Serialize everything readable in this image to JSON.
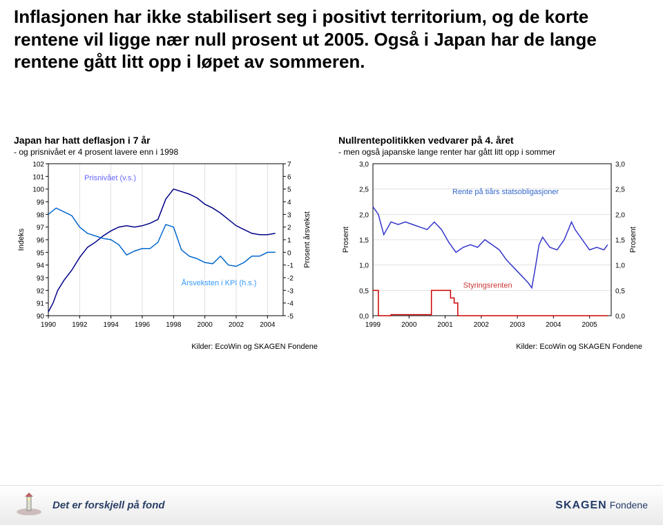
{
  "title": "Inflasjonen har ikke stabilisert seg i positivt territorium, og de korte rentene vil ligge nær null prosent ut 2005. Også i Japan har de lange rentene gått litt opp i løpet av sommeren.",
  "footer": {
    "tagline": "Det er forskjell på fond",
    "logo_main": "SKAGEN",
    "logo_sub": "Fondene"
  },
  "left_chart": {
    "title": "Japan har hatt deflasjon i 7 år",
    "subtitle": "- og prisnivået er 4 prosent lavere enn i 1998",
    "y1_label": "Indeks",
    "y2_label": "Prosent årsvekst",
    "series1_label": "Prisnivået (v.s.)",
    "series2_label": "Årsveksten i KPI (h.s.)",
    "source": "Kilder: EcoWin og SKAGEN Fondene",
    "x_ticks": [
      1990,
      1992,
      1994,
      1996,
      1998,
      2000,
      2002,
      2004
    ],
    "y1_min": 90,
    "y1_max": 102,
    "y1_step": 1,
    "y2_min": -5,
    "y2_max": 7,
    "y2_step": 1,
    "colors": {
      "series1": "#000088",
      "series2": "#0066cc",
      "grid": "#c0c0c0",
      "axis": "#000000",
      "label_series1": "#6666ff",
      "label_series2": "#3399ff"
    },
    "series1_data": [
      [
        1990,
        90.3
      ],
      [
        1990.3,
        91.0
      ],
      [
        1990.6,
        92.0
      ],
      [
        1991,
        92.8
      ],
      [
        1991.5,
        93.6
      ],
      [
        1992,
        94.6
      ],
      [
        1992.5,
        95.4
      ],
      [
        1993,
        95.8
      ],
      [
        1993.5,
        96.3
      ],
      [
        1994,
        96.7
      ],
      [
        1994.5,
        97.0
      ],
      [
        1995,
        97.1
      ],
      [
        1995.5,
        97.0
      ],
      [
        1996,
        97.1
      ],
      [
        1996.5,
        97.3
      ],
      [
        1997,
        97.6
      ],
      [
        1997.5,
        99.2
      ],
      [
        1998,
        100.0
      ],
      [
        1998.5,
        99.8
      ],
      [
        1999,
        99.6
      ],
      [
        1999.5,
        99.3
      ],
      [
        2000,
        98.8
      ],
      [
        2000.5,
        98.5
      ],
      [
        2001,
        98.1
      ],
      [
        2001.5,
        97.6
      ],
      [
        2002,
        97.1
      ],
      [
        2002.5,
        96.8
      ],
      [
        2003,
        96.5
      ],
      [
        2003.5,
        96.4
      ],
      [
        2004,
        96.4
      ],
      [
        2004.5,
        96.5
      ]
    ],
    "series2_data": [
      [
        1990,
        3.0
      ],
      [
        1990.5,
        3.5
      ],
      [
        1991,
        3.2
      ],
      [
        1991.5,
        2.9
      ],
      [
        1992,
        2.0
      ],
      [
        1992.5,
        1.5
      ],
      [
        1993,
        1.3
      ],
      [
        1993.5,
        1.1
      ],
      [
        1994,
        1.0
      ],
      [
        1994.5,
        0.6
      ],
      [
        1995,
        -0.2
      ],
      [
        1995.5,
        0.1
      ],
      [
        1996,
        0.3
      ],
      [
        1996.5,
        0.3
      ],
      [
        1997,
        0.8
      ],
      [
        1997.5,
        2.2
      ],
      [
        1998,
        2.0
      ],
      [
        1998.5,
        0.2
      ],
      [
        1999,
        -0.3
      ],
      [
        1999.5,
        -0.5
      ],
      [
        2000,
        -0.8
      ],
      [
        2000.5,
        -0.9
      ],
      [
        2001,
        -0.3
      ],
      [
        2001.5,
        -1.0
      ],
      [
        2002,
        -1.1
      ],
      [
        2002.5,
        -0.8
      ],
      [
        2003,
        -0.3
      ],
      [
        2003.5,
        -0.3
      ],
      [
        2004,
        0.0
      ],
      [
        2004.5,
        0.0
      ]
    ]
  },
  "right_chart": {
    "title": "Nullrentepolitikken vedvarer på 4. året",
    "subtitle": "- men også japanske lange renter har gått litt opp i sommer",
    "y_label": "Prosent",
    "series1_label": "Rente på tiårs statsobligasjoner",
    "series2_label": "Styringsrenten",
    "source": "Kilder: EcoWin og SKAGEN Fondene",
    "x_ticks": [
      1999,
      2000,
      2001,
      2002,
      2003,
      2004,
      2005
    ],
    "y_min": 0.0,
    "y_max": 3.0,
    "y_step": 0.5,
    "colors": {
      "series1": "#3333cc",
      "series2": "#cc0000",
      "grid": "#c0c0c0",
      "axis": "#000000",
      "label_series1": "#3366cc",
      "label_series2": "#cc3333"
    },
    "series1_data": [
      [
        1999,
        2.15
      ],
      [
        1999.15,
        2.0
      ],
      [
        1999.3,
        1.6
      ],
      [
        1999.5,
        1.85
      ],
      [
        1999.7,
        1.8
      ],
      [
        1999.9,
        1.85
      ],
      [
        2000.1,
        1.8
      ],
      [
        2000.3,
        1.75
      ],
      [
        2000.5,
        1.7
      ],
      [
        2000.7,
        1.85
      ],
      [
        2000.9,
        1.7
      ],
      [
        2001.1,
        1.45
      ],
      [
        2001.3,
        1.25
      ],
      [
        2001.5,
        1.35
      ],
      [
        2001.7,
        1.4
      ],
      [
        2001.9,
        1.35
      ],
      [
        2002.1,
        1.5
      ],
      [
        2002.3,
        1.4
      ],
      [
        2002.5,
        1.3
      ],
      [
        2002.7,
        1.1
      ],
      [
        2002.9,
        0.95
      ],
      [
        2003.1,
        0.8
      ],
      [
        2003.3,
        0.65
      ],
      [
        2003.4,
        0.55
      ],
      [
        2003.5,
        0.95
      ],
      [
        2003.6,
        1.4
      ],
      [
        2003.7,
        1.55
      ],
      [
        2003.9,
        1.35
      ],
      [
        2004.1,
        1.3
      ],
      [
        2004.3,
        1.5
      ],
      [
        2004.5,
        1.85
      ],
      [
        2004.6,
        1.7
      ],
      [
        2004.8,
        1.5
      ],
      [
        2005.0,
        1.3
      ],
      [
        2005.2,
        1.35
      ],
      [
        2005.4,
        1.3
      ],
      [
        2005.5,
        1.4
      ]
    ],
    "series2_data": [
      [
        1999,
        0.5
      ],
      [
        1999.1,
        0.5
      ],
      [
        1999.15,
        0.0
      ],
      [
        1999.4,
        0.0
      ],
      [
        1999.5,
        0.02
      ],
      [
        2000.0,
        0.02
      ],
      [
        2000.2,
        0.02
      ],
      [
        2000.6,
        0.02
      ],
      [
        2000.62,
        0.5
      ],
      [
        2000.8,
        0.5
      ],
      [
        2001.0,
        0.5
      ],
      [
        2001.15,
        0.35
      ],
      [
        2001.2,
        0.35
      ],
      [
        2001.25,
        0.25
      ],
      [
        2001.3,
        0.25
      ],
      [
        2001.35,
        0.0
      ],
      [
        2001.5,
        0.0
      ],
      [
        2002,
        0.0
      ],
      [
        2003,
        0.0
      ],
      [
        2004,
        0.0
      ],
      [
        2005,
        0.0
      ],
      [
        2005.5,
        0.0
      ]
    ],
    "series2_step": true
  }
}
